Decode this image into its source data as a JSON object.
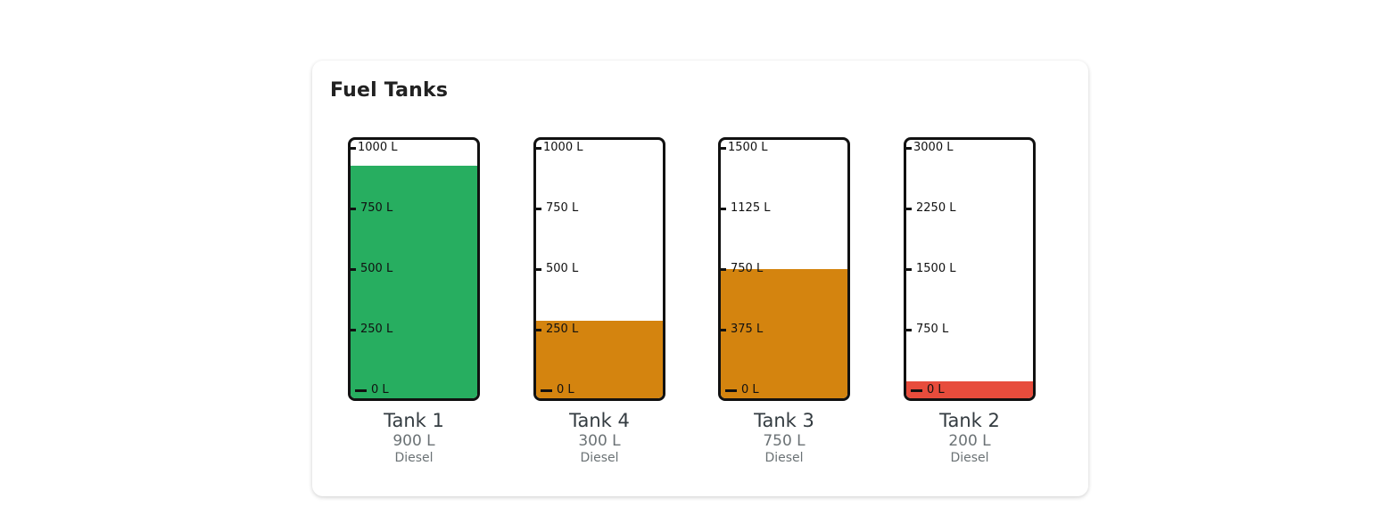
{
  "card": {
    "title": "Fuel Tanks"
  },
  "tanks": [
    {
      "name": "Tank 1",
      "level_text": "900 L",
      "fuel": "Diesel",
      "level": 900,
      "capacity": 1000,
      "fill_color": "#27ae60",
      "ticks": [
        "1000 L",
        "750 L",
        "500 L",
        "250 L",
        "0 L"
      ]
    },
    {
      "name": "Tank 4",
      "level_text": "300 L",
      "fuel": "Diesel",
      "level": 300,
      "capacity": 1000,
      "fill_color": "#d4840f",
      "ticks": [
        "1000 L",
        "750 L",
        "500 L",
        "250 L",
        "0 L"
      ]
    },
    {
      "name": "Tank 3",
      "level_text": "750 L",
      "fuel": "Diesel",
      "level": 750,
      "capacity": 1500,
      "fill_color": "#d4840f",
      "ticks": [
        "1500 L",
        "1125 L",
        "750 L",
        "375 L",
        "0 L"
      ]
    },
    {
      "name": "Tank 2",
      "level_text": "200 L",
      "fuel": "Diesel",
      "level": 200,
      "capacity": 3000,
      "fill_color": "#e74c3c",
      "ticks": [
        "3000 L",
        "2250 L",
        "1500 L",
        "750 L",
        "0 L"
      ]
    }
  ]
}
